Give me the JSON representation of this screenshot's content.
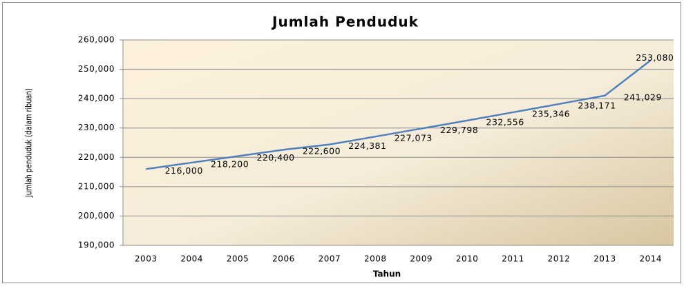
{
  "chart_data": {
    "type": "line",
    "title": "Jumlah Penduduk",
    "x_label": "Tahun",
    "y_label": "Jumlah penduduk (dalam ribuan)",
    "categories": [
      "2003",
      "2004",
      "2005",
      "2006",
      "2007",
      "2008",
      "2009",
      "2010",
      "2011",
      "2012",
      "2013",
      "2014"
    ],
    "series": [
      {
        "name": "Jumlah Penduduk",
        "color": "#4f81bd",
        "values": [
          216000,
          218200,
          220400,
          222600,
          224381,
          227073,
          229798,
          232556,
          235346,
          238171,
          241029,
          253080
        ],
        "value_labels": [
          "216,000",
          "218,200",
          "220,400",
          "222,600",
          "224,381",
          "227,073",
          "229,798",
          "232,556",
          "235,346",
          "238,171",
          "241,029",
          "253,080"
        ]
      }
    ],
    "ylim": [
      190000,
      260000
    ],
    "yticks": [
      {
        "value": 190000,
        "label": "190,000"
      },
      {
        "value": 200000,
        "label": "200,000"
      },
      {
        "value": 210000,
        "label": "210,000"
      },
      {
        "value": 220000,
        "label": "220,000"
      },
      {
        "value": 230000,
        "label": "230,000"
      },
      {
        "value": 240000,
        "label": "240,000"
      },
      {
        "value": 250000,
        "label": "250,000"
      },
      {
        "value": 260000,
        "label": "260,000"
      }
    ],
    "grid": true
  }
}
